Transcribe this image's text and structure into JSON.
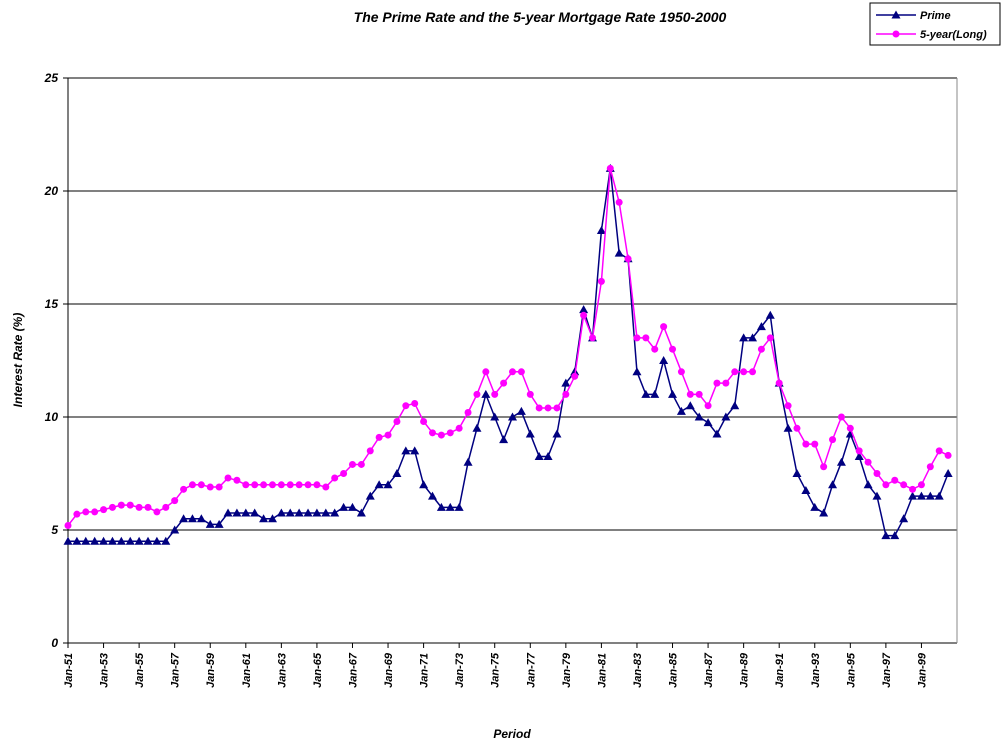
{
  "chart_data": {
    "type": "line",
    "title": "The Prime Rate and the 5-year Mortgage Rate 1950-2000",
    "x_label": "Period",
    "y_label": "Interest Rate (%)",
    "categories": [
      "Jan-51",
      null,
      null,
      null,
      "Jan-53",
      null,
      null,
      null,
      "Jan-55",
      null,
      null,
      null,
      "Jan-57",
      null,
      null,
      null,
      "Jan-59",
      null,
      null,
      null,
      "Jan-61",
      null,
      null,
      null,
      "Jan-63",
      null,
      null,
      null,
      "Jan-65",
      null,
      null,
      null,
      "Jan-67",
      null,
      null,
      null,
      "Jan-69",
      null,
      null,
      null,
      "Jan-71",
      null,
      null,
      null,
      "Jan-73",
      null,
      null,
      null,
      "Jan-75",
      null,
      null,
      null,
      "Jan-77",
      null,
      null,
      null,
      "Jan-79",
      null,
      null,
      null,
      "Jan-81",
      null,
      null,
      null,
      "Jan-83",
      null,
      null,
      null,
      "Jan-85",
      null,
      null,
      null,
      "Jan-87",
      null,
      null,
      null,
      "Jan-89",
      null,
      null,
      null,
      "Jan-91",
      null,
      null,
      null,
      "Jan-93",
      null,
      null,
      null,
      "Jan-95",
      null,
      null,
      null,
      "Jan-97",
      null,
      null,
      null,
      "Jan-99",
      null,
      null,
      null
    ],
    "series": [
      {
        "name": "Prime",
        "color": "#000080",
        "marker": "triangle",
        "values": [
          4.5,
          4.5,
          4.5,
          4.5,
          4.5,
          4.5,
          4.5,
          4.5,
          4.5,
          4.5,
          4.5,
          4.5,
          5,
          5.5,
          5.5,
          5.5,
          5.25,
          5.25,
          5.75,
          5.75,
          5.75,
          5.75,
          5.5,
          5.5,
          5.75,
          5.75,
          5.75,
          5.75,
          5.75,
          5.75,
          5.75,
          6,
          6,
          5.75,
          6.5,
          7,
          7,
          7.5,
          8.5,
          8.5,
          7,
          6.5,
          6,
          6,
          6,
          8,
          9.5,
          11,
          10,
          9,
          10,
          10.25,
          9.25,
          8.25,
          8.25,
          9.25,
          11.5,
          12,
          14.75,
          13.5,
          18.25,
          21,
          17.25,
          17,
          12,
          11,
          11,
          12.5,
          11,
          10.25,
          10.5,
          10,
          9.75,
          9.25,
          10,
          10.5,
          13.5,
          13.5,
          14,
          14.5,
          11.5,
          9.5,
          7.5,
          6.75,
          6,
          5.75,
          7,
          8,
          9.25,
          8.25,
          7,
          6.5,
          4.75,
          4.75,
          5.5,
          6.5,
          6.5,
          6.5,
          6.5,
          7.5
        ]
      },
      {
        "name": "5-year(Long)",
        "color": "#ff00ff",
        "marker": "circle",
        "values": [
          5.2,
          5.7,
          5.8,
          5.8,
          5.9,
          6,
          6.1,
          6.1,
          6,
          6,
          5.8,
          6,
          6.3,
          6.8,
          7,
          7,
          6.9,
          6.9,
          7.3,
          7.2,
          7,
          7,
          7,
          7,
          7,
          7,
          7,
          7,
          7,
          6.9,
          7.3,
          7.5,
          7.9,
          7.9,
          8.5,
          9.1,
          9.2,
          9.8,
          10.5,
          10.6,
          9.8,
          9.3,
          9.2,
          9.3,
          9.5,
          10.2,
          11,
          12,
          11,
          11.5,
          12,
          12,
          11,
          10.4,
          10.4,
          10.4,
          11,
          11.8,
          14.5,
          13.5,
          16,
          21,
          19.5,
          17,
          13.5,
          13.5,
          13,
          14,
          13,
          12,
          11,
          11,
          10.5,
          11.5,
          11.5,
          12,
          12,
          12,
          13,
          13.5,
          11.5,
          10.5,
          9.5,
          8.8,
          8.8,
          7.8,
          9,
          10,
          9.5,
          8.5,
          8,
          7.5,
          7,
          7.2,
          7,
          6.8,
          7,
          7.8,
          8.5,
          8.3
        ]
      }
    ],
    "ylim": [
      0,
      25
    ],
    "yticks": [
      0,
      5,
      10,
      15,
      20,
      25
    ],
    "grid": true,
    "legend": "top-right"
  }
}
